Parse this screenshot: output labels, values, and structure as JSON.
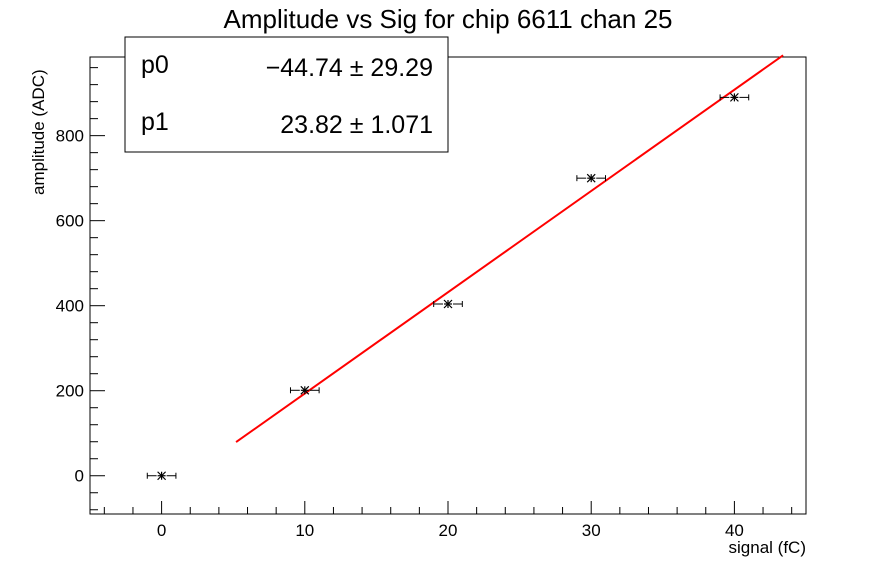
{
  "chart_data": {
    "type": "scatter",
    "title": "Amplitude vs Sig for chip 6611 chan 25",
    "xlabel": "signal (fC)",
    "ylabel": "amplitude (ADC)",
    "xlim": [
      -5,
      45
    ],
    "ylim": [
      -90,
      985
    ],
    "x_ticks": [
      0,
      10,
      20,
      30,
      40
    ],
    "y_ticks": [
      0,
      200,
      400,
      600,
      800
    ],
    "grid": false,
    "points": [
      {
        "x": 0,
        "y": 0,
        "xerr": 1
      },
      {
        "x": 10,
        "y": 201,
        "xerr": 1
      },
      {
        "x": 20,
        "y": 404,
        "xerr": 1
      },
      {
        "x": 30,
        "y": 700,
        "xerr": 1
      },
      {
        "x": 40,
        "y": 890,
        "xerr": 1
      }
    ],
    "fit": {
      "color": "#ff0000",
      "x_range": [
        5.2,
        43.4
      ]
    },
    "stats_box": {
      "rows": [
        {
          "name": "p0",
          "value": "−44.74 ± 29.29"
        },
        {
          "name": "p1",
          "value": "23.82 ± 1.071"
        }
      ]
    },
    "fit_params": {
      "p0": -44.74,
      "p1": 23.82
    }
  }
}
